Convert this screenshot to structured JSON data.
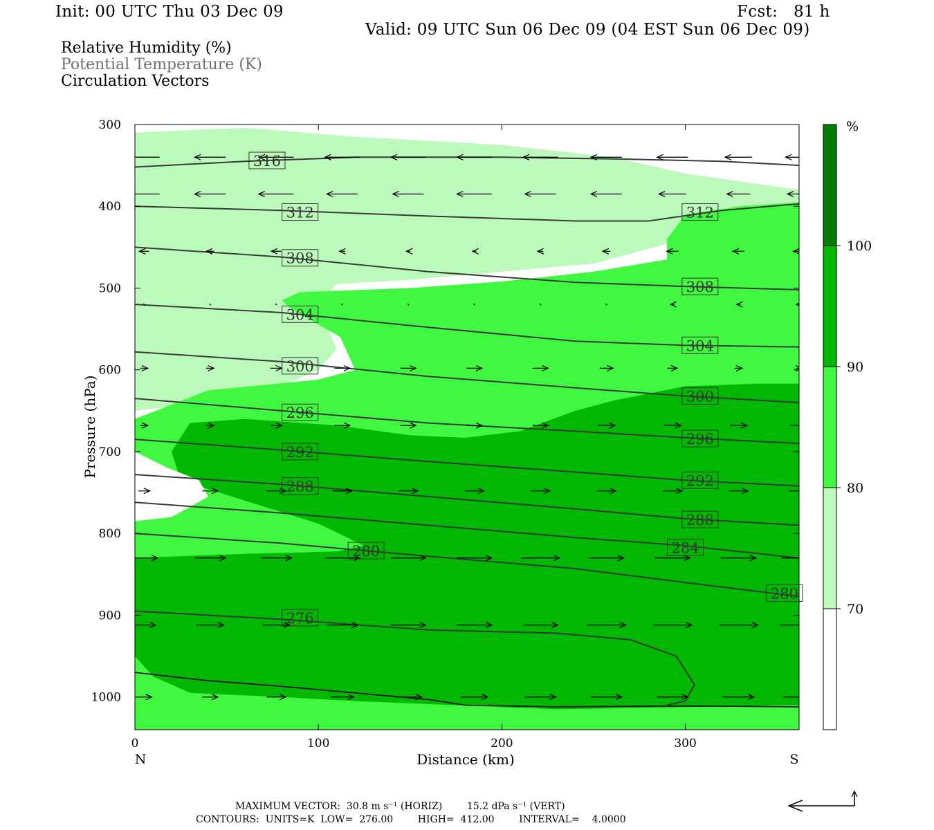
{
  "header": {
    "init": "Init: 00 UTC Thu 03 Dec 09",
    "fcst": "Fcst:   81 h",
    "valid": "Valid: 09 UTC Sun 06 Dec 09 (04 EST Sun 06 Dec 09)"
  },
  "fields": {
    "rh": "Relative Humidity (%)",
    "theta": "Potential Temperature (K)",
    "vectors": "Circulation Vectors"
  },
  "chart_data": {
    "type": "contour-cross-section",
    "xlabel": "Distance (km)",
    "ylabel": "Pressure (hPa)",
    "xlim": [
      0,
      362
    ],
    "ylim": [
      1040,
      300
    ],
    "x_ticks": [
      0,
      100,
      200,
      300
    ],
    "y_ticks": [
      300,
      400,
      500,
      600,
      700,
      800,
      900,
      1000
    ],
    "x_end_labels": {
      "left": "N",
      "right": "S"
    },
    "colorbar": {
      "unit": "%",
      "levels": [
        70,
        80,
        90,
        100
      ],
      "colors": [
        "#ffffff",
        "#bbfabb",
        "#3ff83f",
        "#00b800",
        "#007d00"
      ]
    },
    "rh_regions": [
      {
        "level": "70-80",
        "color": "#bbfabb",
        "points": [
          [
            0,
            310
          ],
          [
            60,
            304
          ],
          [
            120,
            315
          ],
          [
            200,
            325
          ],
          [
            260,
            340
          ],
          [
            300,
            360
          ],
          [
            362,
            380
          ],
          [
            362,
            415
          ],
          [
            300,
            440
          ],
          [
            250,
            470
          ],
          [
            200,
            480
          ],
          [
            150,
            490
          ],
          [
            110,
            495
          ],
          [
            100,
            520
          ],
          [
            110,
            575
          ],
          [
            100,
            600
          ],
          [
            80,
            620
          ],
          [
            40,
            640
          ],
          [
            0,
            650
          ],
          [
            0,
            800
          ],
          [
            362,
            800
          ],
          [
            362,
            1045
          ],
          [
            0,
            1045
          ]
        ]
      },
      {
        "level": "80-90",
        "color": "#3ff83f",
        "points": [
          [
            362,
            395
          ],
          [
            362,
            1045
          ],
          [
            0,
            1045
          ],
          [
            0,
            660
          ],
          [
            40,
            625
          ],
          [
            100,
            612
          ],
          [
            120,
            600
          ],
          [
            112,
            560
          ],
          [
            85,
            525
          ],
          [
            80,
            515
          ],
          [
            90,
            505
          ],
          [
            150,
            500
          ],
          [
            200,
            492
          ],
          [
            250,
            480
          ],
          [
            290,
            465
          ],
          [
            290,
            440
          ],
          [
            300,
            410
          ],
          [
            330,
            400
          ]
        ]
      },
      {
        "level": "90-100",
        "color": "#00b800",
        "points": [
          [
            362,
            617
          ],
          [
            362,
            1010
          ],
          [
            230,
            1015
          ],
          [
            120,
            1005
          ],
          [
            80,
            1000
          ],
          [
            30,
            995
          ],
          [
            10,
            975
          ],
          [
            0,
            950
          ],
          [
            0,
            830
          ],
          [
            60,
            825
          ],
          [
            110,
            822
          ],
          [
            125,
            815
          ],
          [
            100,
            788
          ],
          [
            60,
            760
          ],
          [
            25,
            735
          ],
          [
            20,
            700
          ],
          [
            30,
            665
          ],
          [
            60,
            660
          ],
          [
            110,
            668
          ],
          [
            150,
            680
          ],
          [
            180,
            683
          ],
          [
            210,
            675
          ],
          [
            240,
            650
          ],
          [
            260,
            638
          ],
          [
            300,
            620
          ],
          [
            340,
            617
          ]
        ]
      }
    ],
    "white_pockets": [
      {
        "points": [
          [
            0,
            700
          ],
          [
            18,
            720
          ],
          [
            35,
            735
          ],
          [
            40,
            755
          ],
          [
            20,
            780
          ],
          [
            0,
            785
          ]
        ]
      }
    ],
    "theta_contours": [
      {
        "value": 316,
        "points": [
          [
            0,
            352
          ],
          [
            60,
            345
          ],
          [
            120,
            340
          ],
          [
            200,
            340
          ],
          [
            260,
            342
          ],
          [
            320,
            345
          ],
          [
            362,
            350
          ]
        ],
        "label_at": [
          72,
          344
        ]
      },
      {
        "value": 312,
        "points": [
          [
            0,
            400
          ],
          [
            80,
            405
          ],
          [
            160,
            412
          ],
          [
            240,
            418
          ],
          [
            280,
            418
          ],
          [
            320,
            405
          ],
          [
            362,
            397
          ]
        ],
        "label_at": [
          90,
          407
        ]
      },
      {
        "value": 308,
        "points": [
          [
            0,
            450
          ],
          [
            80,
            462
          ],
          [
            160,
            480
          ],
          [
            240,
            493
          ],
          [
            300,
            498
          ],
          [
            362,
            502
          ]
        ],
        "label_at": [
          90,
          463
        ]
      },
      {
        "value": 304,
        "points": [
          [
            0,
            520
          ],
          [
            80,
            530
          ],
          [
            160,
            548
          ],
          [
            240,
            565
          ],
          [
            300,
            570
          ],
          [
            362,
            572
          ]
        ],
        "label_at": [
          90,
          532
        ]
      },
      {
        "value": 300,
        "points": [
          [
            0,
            578
          ],
          [
            80,
            590
          ],
          [
            160,
            608
          ],
          [
            240,
            622
          ],
          [
            300,
            632
          ],
          [
            362,
            640
          ]
        ],
        "label_at": [
          90,
          595
        ]
      },
      {
        "value": 296,
        "points": [
          [
            0,
            635
          ],
          [
            80,
            650
          ],
          [
            160,
            665
          ],
          [
            240,
            675
          ],
          [
            300,
            683
          ],
          [
            362,
            690
          ]
        ],
        "label_at": [
          90,
          652
        ]
      },
      {
        "value": 292,
        "points": [
          [
            0,
            685
          ],
          [
            80,
            698
          ],
          [
            160,
            712
          ],
          [
            240,
            725
          ],
          [
            300,
            735
          ],
          [
            362,
            742
          ]
        ],
        "label_at": [
          90,
          700
        ]
      },
      {
        "value": 288,
        "points": [
          [
            0,
            728
          ],
          [
            80,
            740
          ],
          [
            160,
            755
          ],
          [
            240,
            770
          ],
          [
            300,
            782
          ],
          [
            362,
            790
          ]
        ],
        "label_at": [
          90,
          742
        ]
      },
      {
        "value": 284,
        "points": [
          [
            0,
            762
          ],
          [
            80,
            775
          ],
          [
            160,
            790
          ],
          [
            240,
            805
          ],
          [
            300,
            815
          ],
          [
            362,
            830
          ]
        ],
        "label_at": [
          300,
          817
        ]
      },
      {
        "value": 280,
        "points": [
          [
            0,
            800
          ],
          [
            80,
            812
          ],
          [
            160,
            828
          ],
          [
            240,
            843
          ],
          [
            300,
            860
          ],
          [
            362,
            877
          ]
        ],
        "label_at": [
          126,
          821
        ]
      },
      {
        "value": 276,
        "points": [
          [
            0,
            895
          ],
          [
            80,
            905
          ],
          [
            160,
            918
          ],
          [
            230,
            922
          ],
          [
            270,
            930
          ],
          [
            295,
            950
          ],
          [
            305,
            985
          ],
          [
            300,
            1005
          ],
          [
            290,
            1010
          ]
        ],
        "label_at": [
          90,
          903
        ]
      }
    ],
    "extra_labels": [
      {
        "value": 312,
        "at": [
          308,
          407
        ]
      },
      {
        "value": 308,
        "at": [
          308,
          498
        ]
      },
      {
        "value": 304,
        "at": [
          308,
          570
        ]
      },
      {
        "value": 300,
        "at": [
          308,
          632
        ]
      },
      {
        "value": 296,
        "at": [
          308,
          684
        ]
      },
      {
        "value": 292,
        "at": [
          308,
          735
        ]
      },
      {
        "value": 288,
        "at": [
          308,
          783
        ]
      },
      {
        "value": 280,
        "at": [
          354,
          873
        ]
      }
    ],
    "terrain": {
      "points": [
        [
          0,
          970
        ],
        [
          40,
          980
        ],
        [
          80,
          987
        ],
        [
          120,
          995
        ],
        [
          160,
          1003
        ],
        [
          180,
          1010
        ],
        [
          230,
          1012
        ],
        [
          300,
          1011
        ],
        [
          362,
          1012
        ]
      ]
    },
    "vector_grid": {
      "x": [
        5,
        41,
        77,
        113,
        149,
        185,
        221,
        257,
        293,
        329,
        362
      ],
      "rows": [
        {
          "p": 340,
          "u": [
            -16,
            -16,
            -18,
            -18,
            -18,
            -18,
            -18,
            -16,
            -16,
            -14,
            -14
          ]
        },
        {
          "p": 385,
          "u": [
            -16,
            -16,
            -18,
            -16,
            -16,
            -18,
            -16,
            -16,
            -14,
            -12,
            -12
          ]
        },
        {
          "p": 455,
          "u": [
            -5,
            -4,
            -5,
            -3,
            -2,
            -2,
            -3,
            -4,
            -6,
            -6,
            -6
          ]
        },
        {
          "p": 520,
          "u": [
            0,
            0,
            0,
            0,
            0,
            0,
            0,
            0,
            -2,
            -2,
            -3
          ]
        },
        {
          "p": 598,
          "u": [
            4,
            4,
            6,
            8,
            8,
            8,
            8,
            7,
            5,
            4,
            3
          ]
        },
        {
          "p": 668,
          "u": [
            4,
            4,
            6,
            8,
            8,
            8,
            8,
            9,
            9,
            9,
            9
          ]
        },
        {
          "p": 748,
          "u": [
            6,
            8,
            10,
            10,
            10,
            10,
            10,
            10,
            10,
            10,
            10
          ]
        },
        {
          "p": 830,
          "u": [
            14,
            16,
            16,
            18,
            18,
            18,
            20,
            18,
            18,
            18,
            18
          ]
        },
        {
          "p": 912,
          "u": [
            12,
            14,
            14,
            16,
            18,
            18,
            18,
            20,
            20,
            20,
            20
          ]
        },
        {
          "p": 1000,
          "u": [
            8,
            8,
            10,
            12,
            14,
            14,
            16,
            16,
            16,
            16,
            16
          ]
        }
      ]
    }
  },
  "footer": {
    "line1": "MAXIMUM VECTOR:  30.8 m s⁻¹ (HORIZ)        15.2 dPa s⁻¹ (VERT)",
    "line2": "CONTOURS:  UNITS=K  LOW=  276.00        HIGH=  412.00        INTERVAL=    4.0000"
  }
}
